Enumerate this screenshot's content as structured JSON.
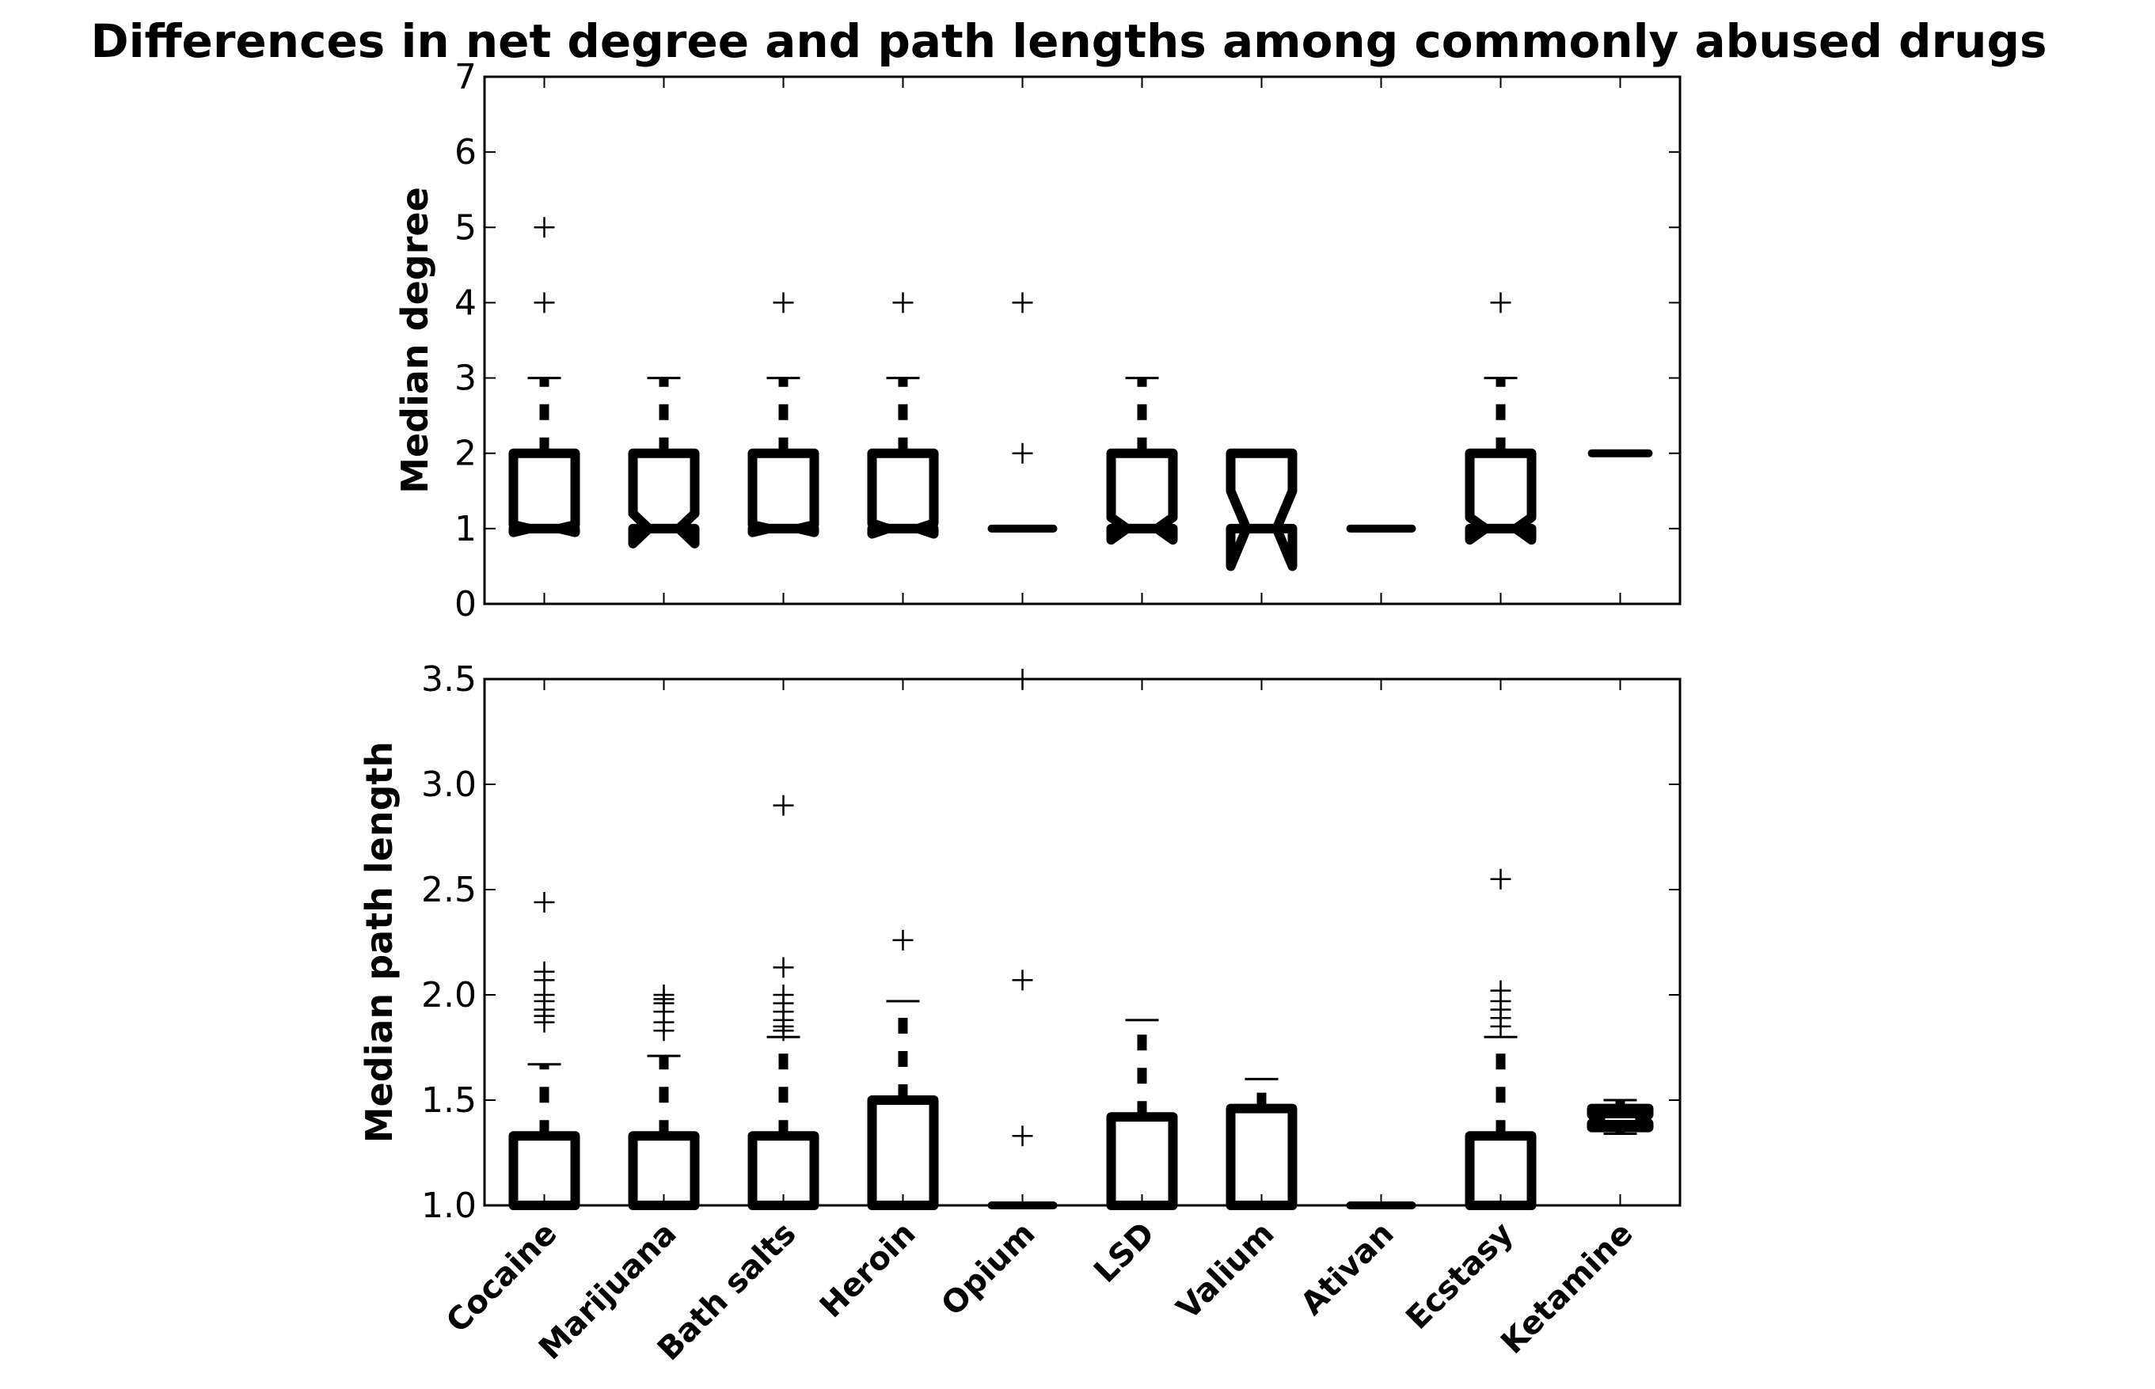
{
  "chart_data": {
    "title": "Differences in net degree and path lengths among commonly abused drugs",
    "categories": [
      "Cocaine",
      "Marijuana",
      "Bath salts",
      "Heroin",
      "Opium",
      "LSD",
      "Valium",
      "Ativan",
      "Ecstasy",
      "Ketamine"
    ],
    "colors": {
      "box": "#000000",
      "background": "#ffffff"
    },
    "panels": [
      {
        "type": "boxplot",
        "notched": true,
        "ylabel": "Median degree",
        "ylim": [
          0,
          7
        ],
        "yticks": [
          "0",
          "1",
          "2",
          "3",
          "4",
          "5",
          "6",
          "7"
        ],
        "ytick_values": [
          0,
          1,
          2,
          3,
          4,
          5,
          6,
          7
        ],
        "boxes": [
          {
            "q1": 1,
            "median": 1,
            "q3": 2,
            "notch_lo": 0.95,
            "notch_hi": 1.05,
            "wlo": 1,
            "whi": 3,
            "fliers": [
              4,
              5
            ]
          },
          {
            "q1": 1,
            "median": 1,
            "q3": 2,
            "notch_lo": 0.8,
            "notch_hi": 1.2,
            "wlo": 1,
            "whi": 3,
            "fliers": []
          },
          {
            "q1": 1,
            "median": 1,
            "q3": 2,
            "notch_lo": 0.95,
            "notch_hi": 1.05,
            "wlo": 1,
            "whi": 3,
            "fliers": [
              4
            ]
          },
          {
            "q1": 1,
            "median": 1,
            "q3": 2,
            "notch_lo": 0.93,
            "notch_hi": 1.07,
            "wlo": 1,
            "whi": 3,
            "fliers": [
              4
            ]
          },
          {
            "q1": 1,
            "median": 1,
            "q3": 1,
            "notch_lo": 1,
            "notch_hi": 1,
            "wlo": 1,
            "whi": 1,
            "fliers": [
              2,
              4
            ]
          },
          {
            "q1": 1,
            "median": 1,
            "q3": 2,
            "notch_lo": 0.85,
            "notch_hi": 1.15,
            "wlo": 1,
            "whi": 3,
            "fliers": []
          },
          {
            "q1": 1,
            "median": 1,
            "q3": 2,
            "notch_lo": 0.5,
            "notch_hi": 1.5,
            "wlo": 1,
            "whi": 2,
            "fliers": []
          },
          {
            "q1": 1,
            "median": 1,
            "q3": 1,
            "notch_lo": 1,
            "notch_hi": 1,
            "wlo": 1,
            "whi": 1,
            "fliers": []
          },
          {
            "q1": 1,
            "median": 1,
            "q3": 2,
            "notch_lo": 0.85,
            "notch_hi": 1.15,
            "wlo": 1,
            "whi": 3,
            "fliers": [
              4
            ]
          },
          {
            "q1": 2,
            "median": 2,
            "q3": 2,
            "notch_lo": 2,
            "notch_hi": 2,
            "wlo": 2,
            "whi": 2,
            "fliers": []
          }
        ]
      },
      {
        "type": "boxplot",
        "notched": true,
        "ylabel": "Median path length",
        "ylim": [
          1.0,
          3.5
        ],
        "yticks": [
          "1.0",
          "1.5",
          "2.0",
          "2.5",
          "3.0",
          "3.5"
        ],
        "ytick_values": [
          1.0,
          1.5,
          2.0,
          2.5,
          3.0,
          3.5
        ],
        "boxes": [
          {
            "q1": 1.0,
            "median": 1.0,
            "q3": 1.33,
            "notch_lo": 1.0,
            "notch_hi": 1.0,
            "wlo": 1.0,
            "whi": 1.67,
            "fliers": [
              1.87,
              1.9,
              1.93,
              1.97,
              2.0,
              2.07,
              2.11,
              2.44
            ]
          },
          {
            "q1": 1.0,
            "median": 1.0,
            "q3": 1.33,
            "notch_lo": 1.0,
            "notch_hi": 1.0,
            "wlo": 1.0,
            "whi": 1.71,
            "fliers": [
              1.83,
              1.87,
              1.92,
              1.96,
              1.98,
              2.0
            ]
          },
          {
            "q1": 1.0,
            "median": 1.0,
            "q3": 1.33,
            "notch_lo": 1.0,
            "notch_hi": 1.0,
            "wlo": 1.0,
            "whi": 1.8,
            "fliers": [
              1.83,
              1.85,
              1.88,
              1.92,
              1.96,
              2.0,
              2.13,
              2.9
            ]
          },
          {
            "q1": 1.0,
            "median": 1.0,
            "q3": 1.5,
            "notch_lo": 1.0,
            "notch_hi": 1.0,
            "wlo": 1.0,
            "whi": 1.97,
            "fliers": [
              2.26
            ]
          },
          {
            "q1": 1.0,
            "median": 1.0,
            "q3": 1.0,
            "notch_lo": 1.0,
            "notch_hi": 1.0,
            "wlo": 1.0,
            "whi": 1.0,
            "fliers": [
              1.33,
              2.07,
              3.5
            ]
          },
          {
            "q1": 1.0,
            "median": 1.0,
            "q3": 1.42,
            "notch_lo": 1.0,
            "notch_hi": 1.0,
            "wlo": 1.0,
            "whi": 1.88,
            "fliers": []
          },
          {
            "q1": 1.0,
            "median": 1.0,
            "q3": 1.46,
            "notch_lo": 1.0,
            "notch_hi": 1.0,
            "wlo": 1.0,
            "whi": 1.6,
            "fliers": []
          },
          {
            "q1": 1.0,
            "median": 1.0,
            "q3": 1.0,
            "notch_lo": 1.0,
            "notch_hi": 1.0,
            "wlo": 1.0,
            "whi": 1.0,
            "fliers": []
          },
          {
            "q1": 1.0,
            "median": 1.0,
            "q3": 1.33,
            "notch_lo": 1.0,
            "notch_hi": 1.0,
            "wlo": 1.0,
            "whi": 1.8,
            "fliers": [
              1.85,
              1.89,
              1.93,
              1.97,
              2.02,
              2.55
            ]
          },
          {
            "q1": 1.37,
            "median": 1.41,
            "q3": 1.46,
            "notch_lo": 1.39,
            "notch_hi": 1.43,
            "wlo": 1.34,
            "whi": 1.5,
            "fliers": []
          }
        ]
      }
    ]
  }
}
